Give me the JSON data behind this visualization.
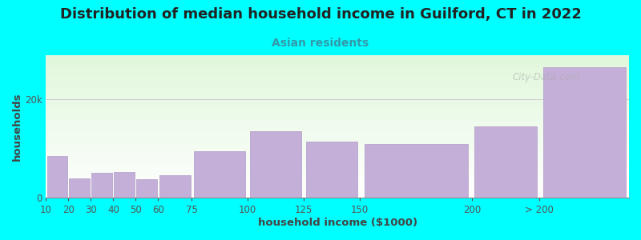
{
  "title": "Distribution of median household income in Guilford, CT in 2022",
  "subtitle": "Asian residents",
  "xlabel": "household income ($1000)",
  "ylabel": "households",
  "background_color": "#00FFFF",
  "bar_color": "#c4afd8",
  "bar_edge_color": "#b8a4cc",
  "watermark": "City-Data.com",
  "title_fontsize": 13,
  "subtitle_fontsize": 10,
  "axis_label_fontsize": 9.5,
  "tick_fontsize": 8.5,
  "subtitle_color": "#3399aa",
  "left_edges": [
    10,
    20,
    30,
    40,
    50,
    60,
    75,
    100,
    125,
    150,
    200,
    230
  ],
  "widths": [
    10,
    10,
    10,
    10,
    10,
    15,
    25,
    25,
    25,
    50,
    30,
    40
  ],
  "values": [
    8500,
    4000,
    5000,
    5200,
    3800,
    4600,
    9500,
    13500,
    11500,
    11000,
    14500,
    26500
  ],
  "xtick_positions": [
    10,
    20,
    30,
    40,
    50,
    60,
    75,
    100,
    125,
    150,
    200,
    230
  ],
  "xtick_labels": [
    "10",
    "20",
    "30",
    "40",
    "50",
    "60",
    "75",
    "100",
    "125",
    "150",
    "200",
    "> 200"
  ],
  "yticks": [
    0,
    20000
  ],
  "ytick_labels": [
    "0",
    "20k"
  ],
  "ylim": [
    0,
    29000
  ],
  "xlim": [
    10,
    270
  ]
}
